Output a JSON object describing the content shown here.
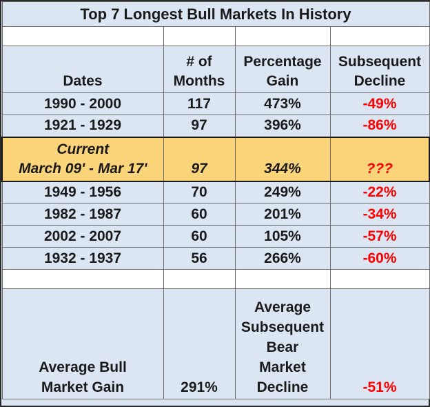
{
  "title": "Top 7 Longest Bull Markets In History",
  "headers": {
    "dates": "Dates",
    "months_line1": "# of",
    "months_line2": "Months",
    "gain_line1": "Percentage",
    "gain_line2": "Gain",
    "decline_line1": "Subsequent",
    "decline_line2": "Decline"
  },
  "rows_before": [
    {
      "dates": "1990 - 2000",
      "months": "117",
      "gain": "473%",
      "decline": "-49%"
    },
    {
      "dates": "1921 - 1929",
      "months": "97",
      "gain": "396%",
      "decline": "-86%"
    }
  ],
  "current": {
    "label_line1": "Current",
    "label_line2": "March 09' - Mar 17'",
    "months": "97",
    "gain": "344%",
    "decline": "???"
  },
  "rows_after": [
    {
      "dates": "1949 - 1956",
      "months": "70",
      "gain": "249%",
      "decline": "-22%"
    },
    {
      "dates": "1982 - 1987",
      "months": "60",
      "gain": "201%",
      "decline": "-34%"
    },
    {
      "dates": "2002 - 2007",
      "months": "60",
      "gain": "105%",
      "decline": "-57%"
    },
    {
      "dates": "1932 - 1937",
      "months": "56",
      "gain": "266%",
      "decline": "-60%"
    }
  ],
  "summary": {
    "avg_gain_line1": "Average Bull",
    "avg_gain_line2": "Market Gain",
    "avg_gain_value": "291%",
    "avg_decline_line1": "Average",
    "avg_decline_line2": "Subsequent",
    "avg_decline_line3": "Bear",
    "avg_decline_line4": "Market",
    "avg_decline_line5": "Decline",
    "avg_decline_value": "-51%"
  },
  "colors": {
    "table_bg": "#dce6f2",
    "current_bg": "#fcd47a",
    "decline_text": "#ff0000"
  }
}
